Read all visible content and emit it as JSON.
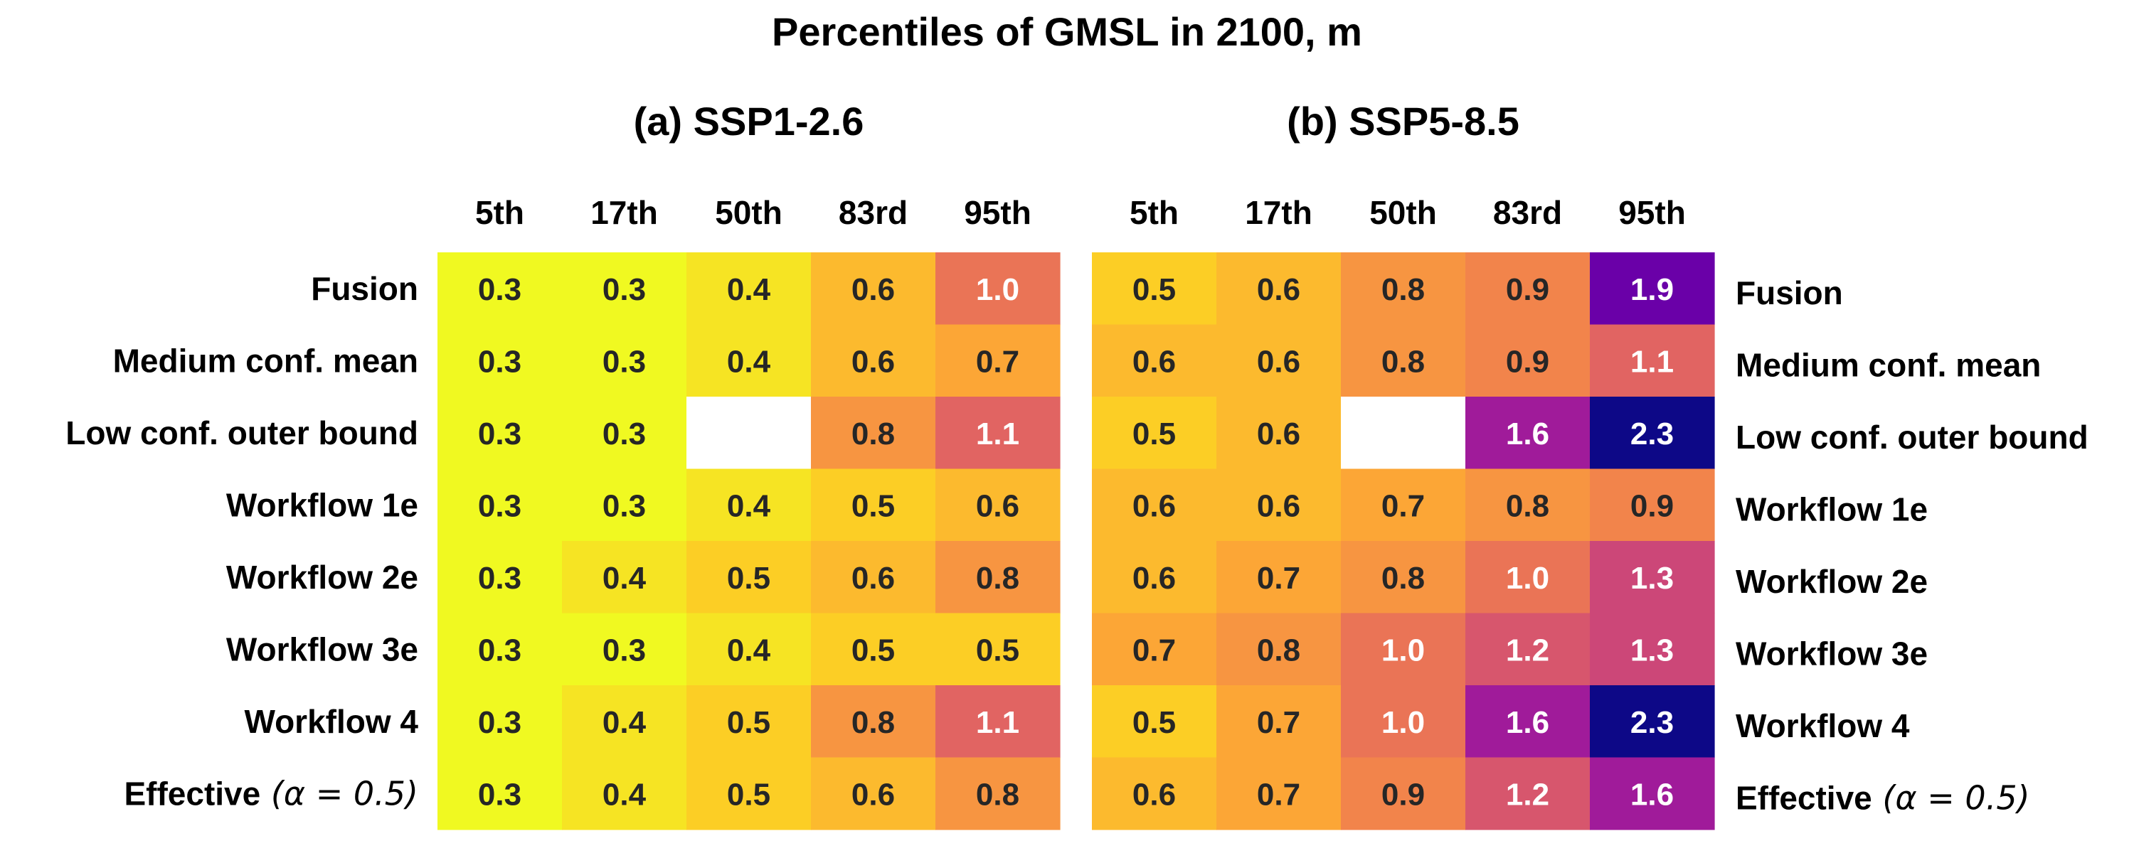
{
  "chart_data": {
    "type": "heatmap",
    "title": "Percentiles of GMSL in 2100, m",
    "columns": [
      "5th",
      "17th",
      "50th",
      "83rd",
      "95th"
    ],
    "rows": [
      {
        "bold": "Fusion",
        "math": ""
      },
      {
        "bold": "Medium conf. mean",
        "math": ""
      },
      {
        "bold": "Low conf. outer bound",
        "math": ""
      },
      {
        "bold": "Workflow 1e",
        "math": ""
      },
      {
        "bold": "Workflow 2e",
        "math": ""
      },
      {
        "bold": "Workflow 3e",
        "math": ""
      },
      {
        "bold": "Workflow 4",
        "math": ""
      },
      {
        "bold": "Effective",
        "math": "(α = 0.5)"
      }
    ],
    "colormap": "plasma",
    "color_range": [
      0.3,
      2.3
    ],
    "panels": [
      {
        "title": "(a) SSP1-2.6",
        "values": [
          [
            0.3,
            0.3,
            0.4,
            0.6,
            1.0
          ],
          [
            0.3,
            0.3,
            0.4,
            0.6,
            0.7
          ],
          [
            0.3,
            0.3,
            null,
            0.8,
            1.1
          ],
          [
            0.3,
            0.3,
            0.4,
            0.5,
            0.6
          ],
          [
            0.3,
            0.4,
            0.5,
            0.6,
            0.8
          ],
          [
            0.3,
            0.3,
            0.4,
            0.5,
            0.5
          ],
          [
            0.3,
            0.4,
            0.5,
            0.8,
            1.1
          ],
          [
            0.3,
            0.4,
            0.5,
            0.6,
            0.8
          ]
        ]
      },
      {
        "title": "(b) SSP5-8.5",
        "values": [
          [
            0.5,
            0.6,
            0.8,
            0.9,
            1.9
          ],
          [
            0.6,
            0.6,
            0.8,
            0.9,
            1.1
          ],
          [
            0.5,
            0.6,
            null,
            1.6,
            2.3
          ],
          [
            0.6,
            0.6,
            0.7,
            0.8,
            0.9
          ],
          [
            0.6,
            0.7,
            0.8,
            1.0,
            1.3
          ],
          [
            0.7,
            0.8,
            1.0,
            1.2,
            1.3
          ],
          [
            0.5,
            0.7,
            1.0,
            1.6,
            2.3
          ],
          [
            0.6,
            0.7,
            0.9,
            1.2,
            1.6
          ]
        ]
      }
    ]
  }
}
